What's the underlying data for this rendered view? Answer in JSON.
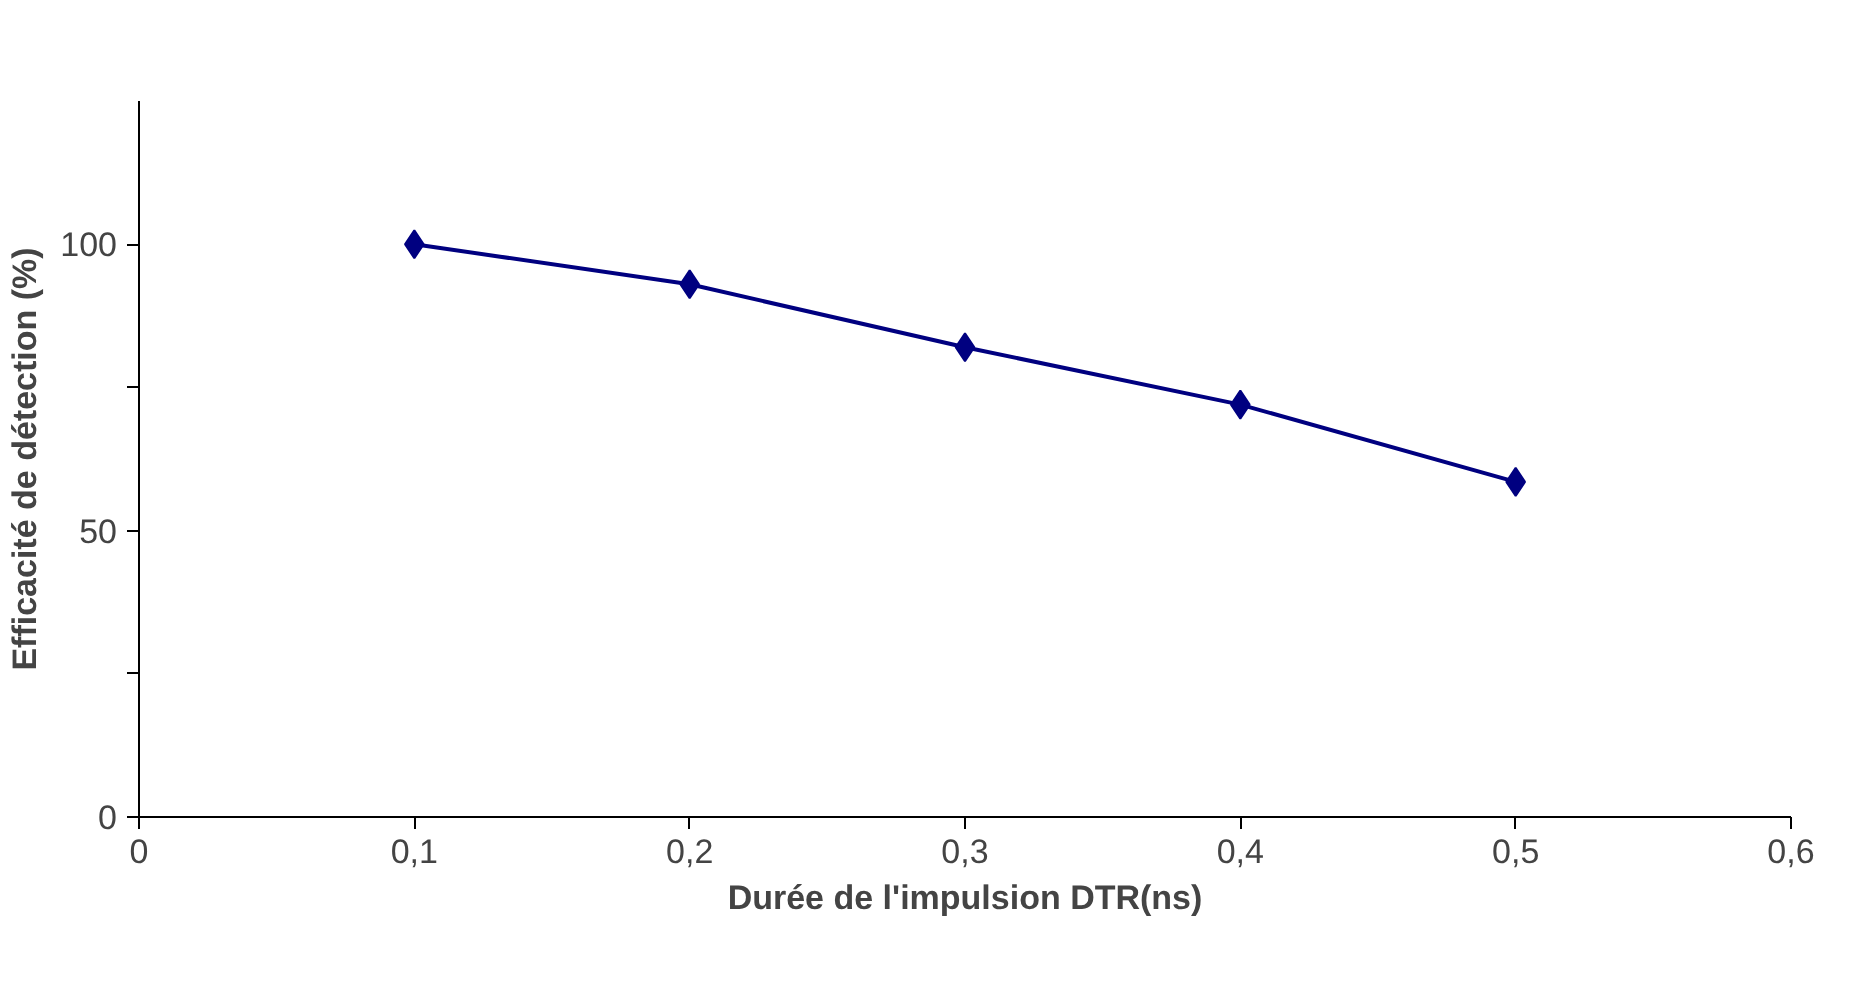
{
  "chart_data": {
    "type": "line",
    "xlabel": "Durée de l'impulsion DTR(ns)",
    "ylabel": "Efficacité de détection (%)",
    "x": [
      0.1,
      0.2,
      0.3,
      0.4,
      0.5
    ],
    "series": [
      {
        "color": "#000080",
        "values": [
          100,
          93,
          82,
          72,
          58.5
        ]
      }
    ],
    "xlim": [
      0,
      0.6
    ],
    "xticks": [
      0,
      {
        "value": 0.1,
        "label": "0,1"
      },
      {
        "value": 0.2,
        "label": "0,2"
      },
      {
        "value": 0.3,
        "label": "0,3"
      },
      {
        "value": 0.4,
        "label": "0,4"
      },
      {
        "value": 0.5,
        "label": "0,5"
      },
      {
        "value": 0.6,
        "label": "0,6"
      }
    ],
    "ylim": [
      0,
      125
    ],
    "yticks": [
      0,
      {
        "value": 25,
        "label": null
      },
      50,
      {
        "value": 75,
        "label": null
      },
      100
    ],
    "grid": false,
    "marker": "diamond",
    "line_style": "solid"
  }
}
